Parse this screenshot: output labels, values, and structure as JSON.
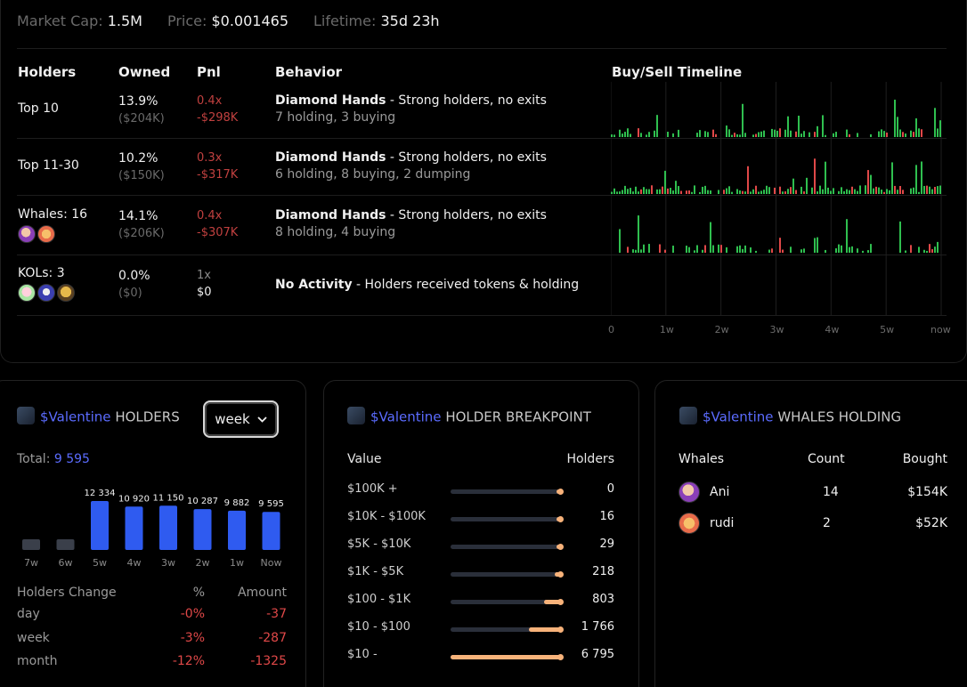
{
  "stats": {
    "market_cap_label": "Market Cap:",
    "market_cap": "1.5M",
    "price_label": "Price:",
    "price": "$0.001465",
    "lifetime_label": "Lifetime:",
    "lifetime": "35d 23h"
  },
  "table": {
    "headers": {
      "holders": "Holders",
      "owned": "Owned",
      "pnl": "Pnl",
      "behavior": "Behavior",
      "timeline": "Buy/Sell Timeline"
    },
    "rows": [
      {
        "name": "Top 10",
        "owned_pct": "13.9%",
        "owned_usd": "($204K)",
        "pnl_x": "0.4x",
        "pnl_usd": "-$298K",
        "beh_title": "Diamond Hands",
        "beh_desc": " - Strong holders, no exits",
        "beh_sub": "7 holding, 3 buying"
      },
      {
        "name": "Top 11-30",
        "owned_pct": "10.2%",
        "owned_usd": "($150K)",
        "pnl_x": "0.3x",
        "pnl_usd": "-$317K",
        "beh_title": "Diamond Hands",
        "beh_desc": " - Strong holders, no exits",
        "beh_sub": "6 holding, 8 buying, 2 dumping"
      },
      {
        "name": "Whales: 16",
        "owned_pct": "14.1%",
        "owned_usd": "($206K)",
        "pnl_x": "0.4x",
        "pnl_usd": "-$307K",
        "beh_title": "Diamond Hands",
        "beh_desc": " - Strong holders, no exits",
        "beh_sub": "8 holding, 4 buying"
      },
      {
        "name": "KOLs: 3",
        "owned_pct": "0.0%",
        "owned_usd": "($0)",
        "pnl_x": "1x",
        "pnl_usd": "$0",
        "beh_title": "No Activity",
        "beh_desc": " - Holders received tokens & holding",
        "beh_sub": ""
      }
    ],
    "timeline_ticks": [
      "0",
      "1w",
      "2w",
      "3w",
      "4w",
      "5w",
      "now"
    ]
  },
  "colors": {
    "buy": "#2fbf4f",
    "sell": "#e04848",
    "accent": "#5b6cff",
    "breakpoint": "#f7b27a"
  },
  "holders_panel": {
    "token": "$Valentine",
    "title": "HOLDERS",
    "period": "week",
    "total_label": "Total:",
    "total": "9 595",
    "chart": [
      {
        "label": "7w",
        "value": null
      },
      {
        "label": "6w",
        "value": null
      },
      {
        "label": "5w",
        "value": 12334,
        "text": "12 334"
      },
      {
        "label": "4w",
        "value": 10920,
        "text": "10 920"
      },
      {
        "label": "3w",
        "value": 11150,
        "text": "11 150"
      },
      {
        "label": "2w",
        "value": 10287,
        "text": "10 287"
      },
      {
        "label": "1w",
        "value": 9882,
        "text": "9 882"
      },
      {
        "label": "Now",
        "value": 9595,
        "text": "9 595"
      }
    ],
    "change_headers": {
      "label": "Holders Change",
      "pct": "%",
      "amount": "Amount"
    },
    "changes": [
      {
        "period": "day",
        "pct": "-0%",
        "amount": "-37"
      },
      {
        "period": "week",
        "pct": "-3%",
        "amount": "-287"
      },
      {
        "period": "month",
        "pct": "-12%",
        "amount": "-1325"
      }
    ]
  },
  "breakpoint_panel": {
    "token": "$Valentine",
    "title": "HOLDER BREAKPOINT",
    "headers": {
      "value": "Value",
      "holders": "Holders"
    },
    "rows": [
      {
        "range": "$100K +",
        "holders": "0",
        "fill": 0.0
      },
      {
        "range": "$10K - $100K",
        "holders": "16",
        "fill": 0.02
      },
      {
        "range": "$5K - $10K",
        "holders": "29",
        "fill": 0.03
      },
      {
        "range": "$1K - $5K",
        "holders": "218",
        "fill": 0.07
      },
      {
        "range": "$100 - $1K",
        "holders": "803",
        "fill": 0.17
      },
      {
        "range": "$10 - $100",
        "holders": "1 766",
        "fill": 0.3
      },
      {
        "range": "$10 -",
        "holders": "6 795",
        "fill": 1.0
      }
    ]
  },
  "whales_panel": {
    "token": "$Valentine",
    "title": "WHALES HOLDING",
    "headers": {
      "whales": "Whales",
      "count": "Count",
      "bought": "Bought"
    },
    "rows": [
      {
        "name": "Ani",
        "count": "14",
        "bought": "$154K"
      },
      {
        "name": "rudi",
        "count": "2",
        "bought": "$52K"
      }
    ]
  }
}
